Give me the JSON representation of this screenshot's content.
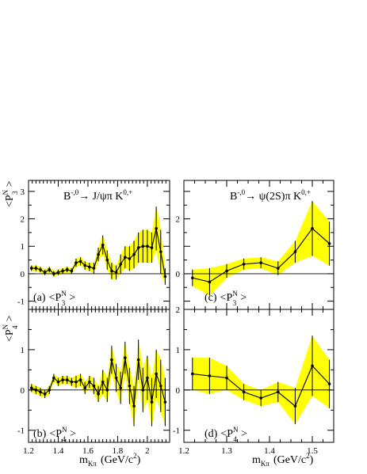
{
  "chart_data": [
    {
      "id": "a",
      "type": "line",
      "channel": "B^0 → J/ψπ K^{0,+}",
      "panel_label": "(a)",
      "ylabel": "<P3N>",
      "xlabel": "",
      "xlim": [
        1.2,
        2.15
      ],
      "ylim": [
        -1.3,
        3.4
      ],
      "xticks": [
        1.2,
        1.4,
        1.6,
        1.8,
        2.0
      ],
      "yticks": [
        -1,
        0,
        1,
        2,
        3
      ],
      "x": [
        1.22,
        1.25,
        1.28,
        1.31,
        1.34,
        1.37,
        1.4,
        1.43,
        1.46,
        1.49,
        1.52,
        1.55,
        1.58,
        1.61,
        1.64,
        1.67,
        1.7,
        1.73,
        1.76,
        1.79,
        1.82,
        1.85,
        1.88,
        1.91,
        1.94,
        1.97,
        2.0,
        2.03,
        2.06,
        2.09,
        2.12
      ],
      "values": [
        0.2,
        0.2,
        0.15,
        0.05,
        0.15,
        0.0,
        0.05,
        0.1,
        0.15,
        0.1,
        0.4,
        0.45,
        0.3,
        0.25,
        0.2,
        0.7,
        1.05,
        0.5,
        0.1,
        0.05,
        0.35,
        0.6,
        0.55,
        0.7,
        0.95,
        1.0,
        1.0,
        0.95,
        1.65,
        0.8,
        -0.1
      ],
      "err": [
        0.1,
        0.1,
        0.1,
        0.1,
        0.1,
        0.1,
        0.1,
        0.1,
        0.1,
        0.1,
        0.15,
        0.15,
        0.15,
        0.15,
        0.2,
        0.25,
        0.35,
        0.35,
        0.3,
        0.25,
        0.35,
        0.4,
        0.45,
        0.5,
        0.55,
        0.6,
        0.6,
        0.55,
        0.8,
        0.8,
        0.3
      ]
    },
    {
      "id": "b",
      "type": "line",
      "channel": "",
      "panel_label": "(b)",
      "ylabel": "<P4N>",
      "xlabel": "mKπ (GeV/c2)",
      "xlim": [
        1.2,
        2.15
      ],
      "ylim": [
        -1.3,
        2.0
      ],
      "xticks": [
        1.2,
        1.4,
        1.6,
        1.8,
        2.0
      ],
      "yticks": [
        -1,
        0,
        1
      ],
      "x": [
        1.22,
        1.25,
        1.28,
        1.31,
        1.34,
        1.37,
        1.4,
        1.43,
        1.46,
        1.49,
        1.52,
        1.55,
        1.58,
        1.61,
        1.64,
        1.67,
        1.7,
        1.73,
        1.76,
        1.79,
        1.82,
        1.85,
        1.88,
        1.91,
        1.94,
        1.97,
        2.0,
        2.03,
        2.06,
        2.09,
        2.12
      ],
      "values": [
        0.05,
        0.0,
        -0.05,
        -0.1,
        0.0,
        0.3,
        0.2,
        0.25,
        0.25,
        0.2,
        0.2,
        0.25,
        0.05,
        0.2,
        0.1,
        -0.1,
        0.2,
        0.0,
        0.75,
        0.3,
        0.05,
        0.8,
        0.1,
        -0.4,
        0.75,
        0.0,
        0.3,
        -0.3,
        0.4,
        0.1,
        -0.3
      ],
      "err": [
        0.1,
        0.1,
        0.1,
        0.1,
        0.1,
        0.1,
        0.1,
        0.1,
        0.1,
        0.1,
        0.15,
        0.15,
        0.15,
        0.15,
        0.2,
        0.2,
        0.3,
        0.3,
        0.35,
        0.35,
        0.4,
        0.4,
        0.45,
        0.5,
        0.5,
        0.55,
        0.55,
        0.6,
        0.6,
        0.65,
        0.6
      ]
    },
    {
      "id": "c",
      "type": "line",
      "channel": "B^0 → ψ(2S)π K^{0,+}",
      "panel_label": "(c)",
      "ylabel": "",
      "xlabel": "",
      "xlim": [
        1.2,
        1.55
      ],
      "ylim": [
        -1.3,
        3.4
      ],
      "xticks": [
        1.2,
        1.3,
        1.4,
        1.5
      ],
      "yticks": [
        0,
        2
      ],
      "x": [
        1.22,
        1.26,
        1.3,
        1.34,
        1.38,
        1.42,
        1.46,
        1.5,
        1.54
      ],
      "values": [
        -0.15,
        -0.3,
        0.1,
        0.35,
        0.4,
        0.2,
        0.8,
        1.65,
        1.1
      ],
      "err": [
        0.3,
        0.5,
        0.25,
        0.2,
        0.2,
        0.25,
        0.4,
        1.0,
        0.8
      ]
    },
    {
      "id": "d",
      "type": "line",
      "channel": "",
      "panel_label": "(d)",
      "ylabel": "",
      "xlabel": "mKπ (GeV/c2)",
      "xlim": [
        1.2,
        1.55
      ],
      "ylim": [
        -1.3,
        2.0
      ],
      "xticks": [
        1.2,
        1.3,
        1.4,
        1.5
      ],
      "yticks": [
        -1,
        0,
        1,
        2
      ],
      "x": [
        1.22,
        1.26,
        1.3,
        1.34,
        1.38,
        1.42,
        1.46,
        1.5,
        1.54
      ],
      "values": [
        0.4,
        0.35,
        0.3,
        -0.05,
        -0.2,
        -0.05,
        -0.4,
        0.6,
        0.15
      ],
      "err": [
        0.4,
        0.45,
        0.3,
        0.2,
        0.2,
        0.25,
        0.45,
        0.75,
        0.6
      ]
    }
  ],
  "colors": {
    "band": "#ffff00",
    "line": "#000000"
  },
  "texts": {
    "title_a_pre": "B",
    "title_a_sup": "-,0",
    "title_a_post": "→ J/ψπ K",
    "title_a_sup2": "0,+",
    "title_c_pre": "B",
    "title_c_sup": "-,0",
    "title_c_post": "→ ψ(2S)π K",
    "title_c_sup2": "0,+",
    "label_a": "(a)",
    "label_b": "(b)",
    "label_c": "(c)",
    "label_d": "(d)",
    "P": "<P",
    "sup_N": "N",
    "sub_3": "3",
    "sub_4": "4",
    "close": ">",
    "xlabel_m": "m",
    "xlabel_sub": "Kπ",
    "xlabel_units": "(GeV/c",
    "xlabel_sq": "2",
    "xlabel_close": ")"
  }
}
